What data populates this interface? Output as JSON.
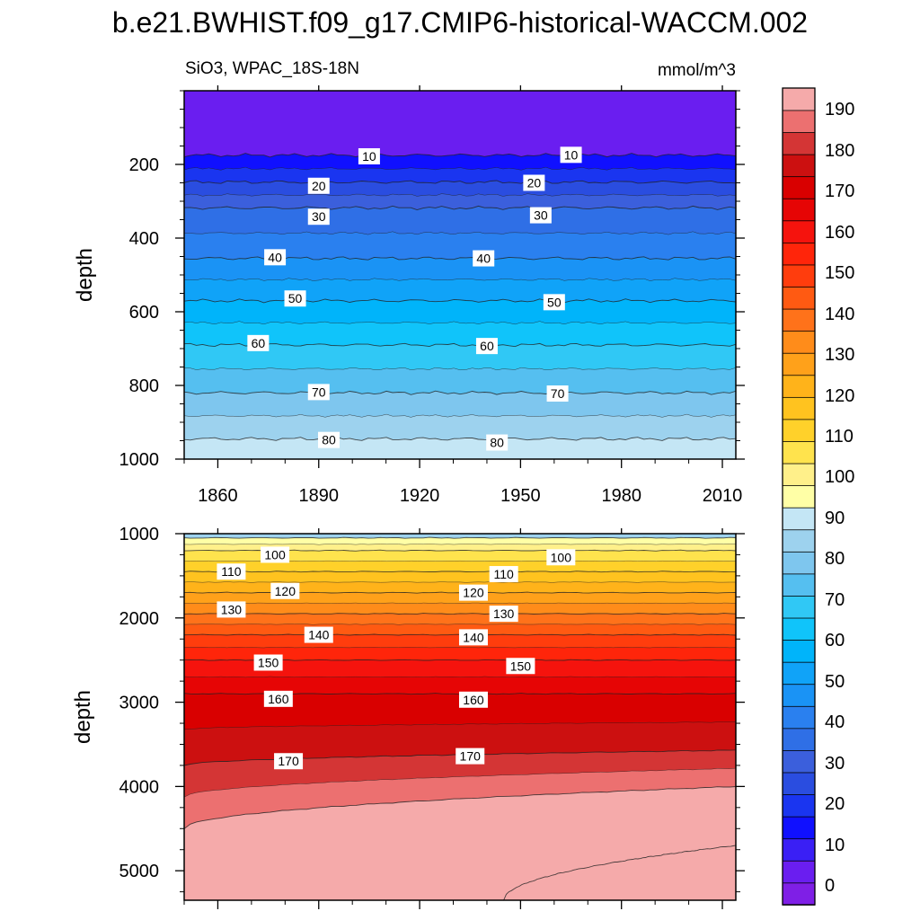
{
  "title": "b.e21.BWHIST.f09_g17.CMIP6-historical-WACCM.002",
  "subtitle_left": "SiO3, WPAC_18S-18N",
  "subtitle_right": "mmol/m^3",
  "chart_data": [
    {
      "type": "heatmap",
      "panel": "upper",
      "title": "SiO3, WPAC_18S-18N",
      "units": "mmol/m^3",
      "xlabel": "",
      "ylabel": "depth",
      "xlim": [
        1850,
        2014
      ],
      "ylim": [
        1000,
        0
      ],
      "x_ticks": [
        1860,
        1890,
        1920,
        1950,
        1980,
        2010
      ],
      "y_ticks": [
        200,
        400,
        600,
        800,
        1000
      ],
      "contours": [
        {
          "level": 10,
          "depth": 175
        },
        {
          "level": 20,
          "depth": 248
        },
        {
          "level": 30,
          "depth": 318
        },
        {
          "level": 40,
          "depth": 455
        },
        {
          "level": 50,
          "depth": 570
        },
        {
          "level": 60,
          "depth": 690
        },
        {
          "level": 70,
          "depth": 820
        },
        {
          "level": 80,
          "depth": 945
        }
      ],
      "contour_labels": [
        {
          "text": "10",
          "x": 1905,
          "depth": 178
        },
        {
          "text": "10",
          "x": 1965,
          "depth": 174
        },
        {
          "text": "20",
          "x": 1890,
          "depth": 258
        },
        {
          "text": "20",
          "x": 1954,
          "depth": 250
        },
        {
          "text": "30",
          "x": 1890,
          "depth": 342
        },
        {
          "text": "30",
          "x": 1956,
          "depth": 338
        },
        {
          "text": "40",
          "x": 1877,
          "depth": 452
        },
        {
          "text": "40",
          "x": 1939,
          "depth": 455
        },
        {
          "text": "50",
          "x": 1883,
          "depth": 564
        },
        {
          "text": "50",
          "x": 1960,
          "depth": 574
        },
        {
          "text": "60",
          "x": 1872,
          "depth": 685
        },
        {
          "text": "60",
          "x": 1940,
          "depth": 693
        },
        {
          "text": "70",
          "x": 1890,
          "depth": 818
        },
        {
          "text": "70",
          "x": 1961,
          "depth": 822
        },
        {
          "text": "80",
          "x": 1893,
          "depth": 948
        },
        {
          "text": "80",
          "x": 1943,
          "depth": 955
        }
      ]
    },
    {
      "type": "heatmap",
      "panel": "lower",
      "title": "",
      "xlabel": "",
      "ylabel": "depth",
      "xlim": [
        1850,
        2014
      ],
      "ylim": [
        5350,
        1000
      ],
      "y_ticks": [
        1000,
        2000,
        3000,
        4000,
        5000
      ],
      "contours": [
        {
          "level": 90,
          "depth": 1050
        },
        {
          "level": 100,
          "depth": 1200
        },
        {
          "level": 110,
          "depth": 1450
        },
        {
          "level": 120,
          "depth": 1700
        },
        {
          "level": 130,
          "depth": 1950
        },
        {
          "level": 140,
          "depth": 2200
        },
        {
          "level": 150,
          "depth": 2500
        },
        {
          "level": 160,
          "depth": 2900
        },
        {
          "level": 170,
          "depth": [
            3750,
            3570
          ]
        },
        {
          "level": 180,
          "depth": [
            4500,
            4000
          ]
        },
        {
          "level": 190,
          "depth": [
            5350,
            4700
          ],
          "x_start": 1945
        }
      ],
      "contour_labels": [
        {
          "text": "100",
          "x": 1877,
          "depth": 1250
        },
        {
          "text": "100",
          "x": 1962,
          "depth": 1280
        },
        {
          "text": "110",
          "x": 1864,
          "depth": 1450
        },
        {
          "text": "110",
          "x": 1945,
          "depth": 1480
        },
        {
          "text": "120",
          "x": 1880,
          "depth": 1680
        },
        {
          "text": "120",
          "x": 1936,
          "depth": 1700
        },
        {
          "text": "130",
          "x": 1864,
          "depth": 1900
        },
        {
          "text": "130",
          "x": 1945,
          "depth": 1950
        },
        {
          "text": "140",
          "x": 1890,
          "depth": 2200
        },
        {
          "text": "140",
          "x": 1936,
          "depth": 2230
        },
        {
          "text": "150",
          "x": 1875,
          "depth": 2530
        },
        {
          "text": "150",
          "x": 1950,
          "depth": 2570
        },
        {
          "text": "160",
          "x": 1878,
          "depth": 2960
        },
        {
          "text": "160",
          "x": 1936,
          "depth": 2970
        },
        {
          "text": "170",
          "x": 1881,
          "depth": 3700
        },
        {
          "text": "170",
          "x": 1935,
          "depth": 3640
        }
      ]
    }
  ],
  "colorbar": {
    "labels": [
      "0",
      "10",
      "20",
      "30",
      "40",
      "50",
      "60",
      "70",
      "80",
      "90",
      "100",
      "110",
      "120",
      "130",
      "140",
      "150",
      "160",
      "170",
      "180",
      "190"
    ],
    "colors": [
      "#7f1fe6",
      "#6a1ef0",
      "#3a1ff5",
      "#1010ff",
      "#1a35f0",
      "#2a4de0",
      "#3b5fdc",
      "#2f6fe6",
      "#2a80ef",
      "#1a93f5",
      "#10a3f8",
      "#00b4fa",
      "#10c4fa",
      "#30c8f5",
      "#55bff0",
      "#7ec6ee",
      "#9dd2ee",
      "#c4e6f5",
      "#ffffa6",
      "#fff08a",
      "#ffe34d",
      "#ffd12a",
      "#ffc31f",
      "#ffb31a",
      "#ffa11a",
      "#ff8c1a",
      "#ff721a",
      "#ff5a12",
      "#ff3d0d",
      "#ff250a",
      "#f5130d",
      "#e60505",
      "#d90000",
      "#cc1010",
      "#d43535",
      "#ec7070",
      "#f5aaaa"
    ]
  }
}
